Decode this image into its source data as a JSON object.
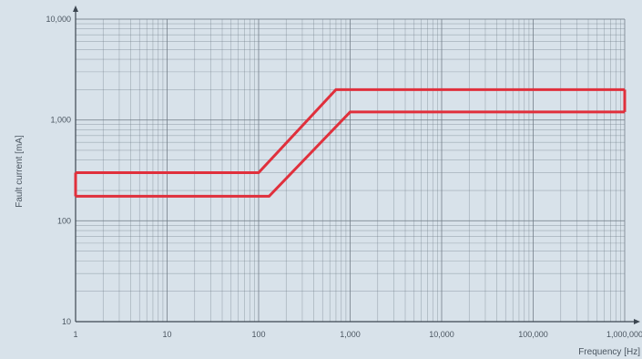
{
  "chart_data": {
    "type": "line",
    "title": "",
    "xlabel": "Frequency [Hz]",
    "ylabel": "Fault current [mA]",
    "x_scale": "log",
    "y_scale": "log",
    "xlim": [
      1,
      1000000
    ],
    "ylim": [
      10,
      10000
    ],
    "x_ticks": [
      1,
      10,
      100,
      1000,
      10000,
      100000,
      1000000
    ],
    "x_tick_labels": [
      "1",
      "10",
      "100",
      "1,000",
      "10,000",
      "100,000",
      "1,000,000"
    ],
    "y_ticks": [
      10,
      100,
      1000,
      10000
    ],
    "y_tick_labels": [
      "10",
      "100",
      "1,000",
      "10,000"
    ],
    "grid": true,
    "line_color": "#e0303c",
    "series": [
      {
        "x": [
          1,
          100,
          700,
          1000000
        ],
        "y": [
          300,
          300,
          2000,
          2000
        ]
      },
      {
        "x": [
          1,
          130,
          1000,
          1000000
        ],
        "y": [
          175,
          175,
          1200,
          1200
        ]
      }
    ]
  },
  "colors": {
    "background": "#d8e2ea",
    "grid": "#6e7a85",
    "axis": "#3c4650"
  }
}
